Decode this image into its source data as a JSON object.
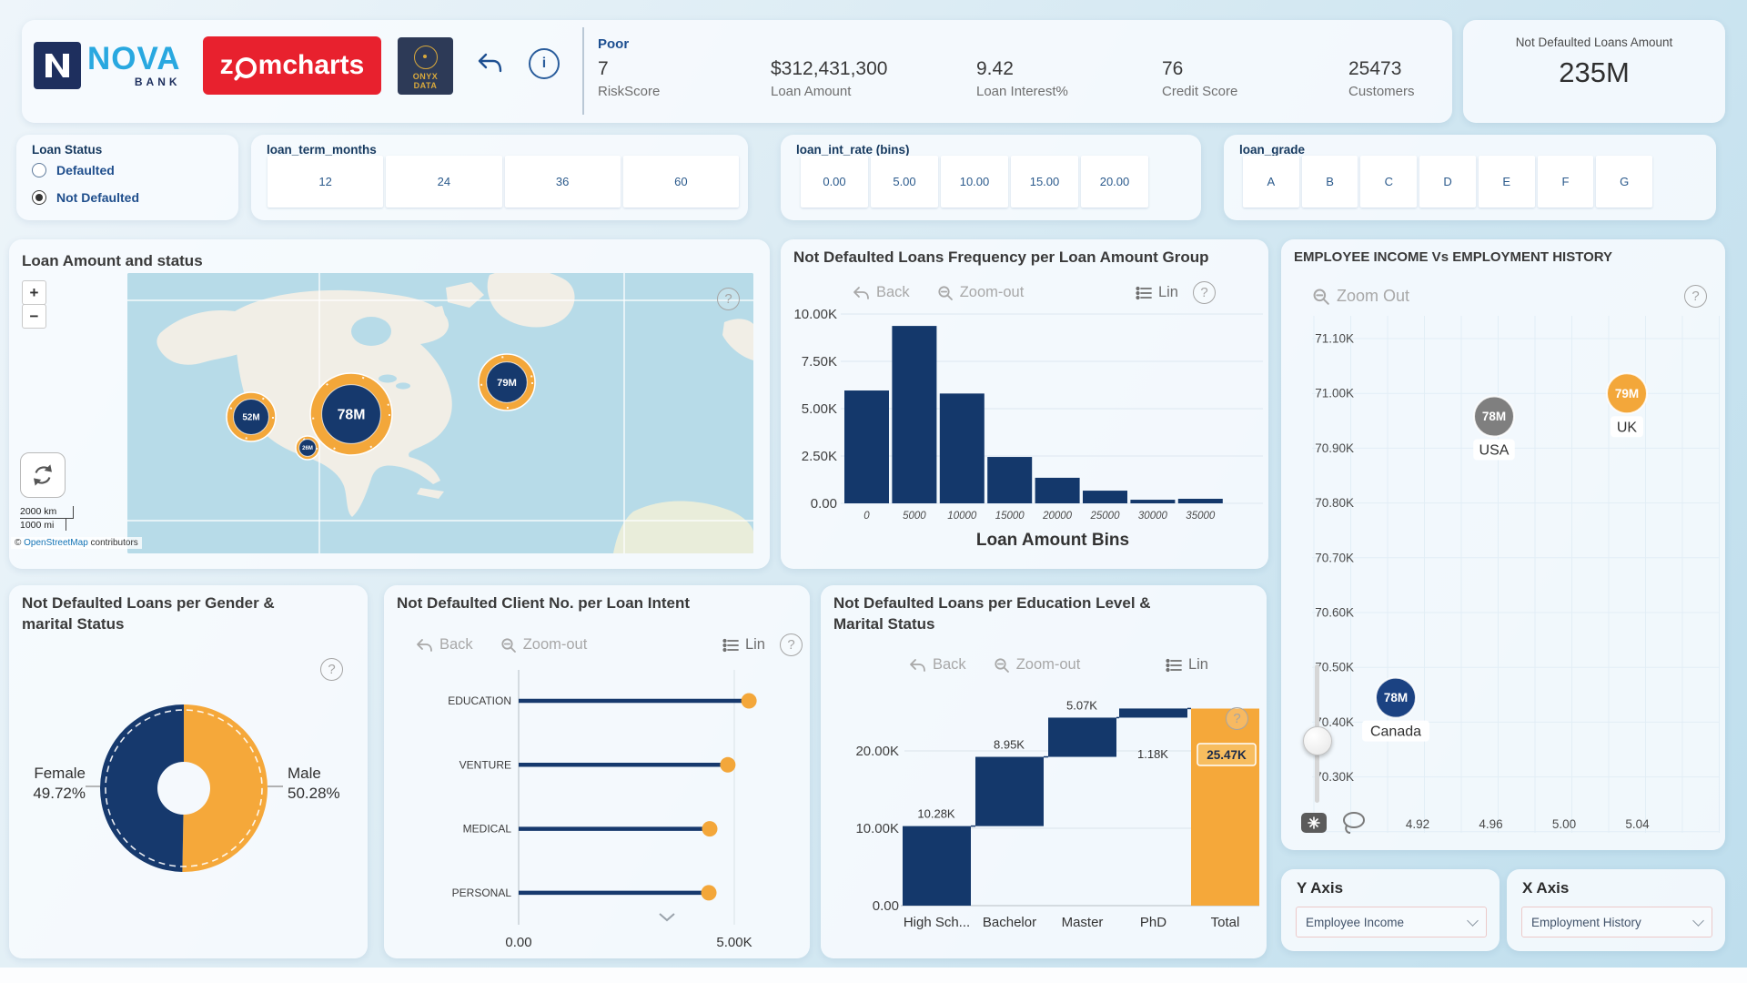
{
  "ui": {
    "back": "Back",
    "zoom_out": "Zoom-out",
    "zoom_out_scatter": "Zoom Out",
    "lin": "Lin",
    "help": "?"
  },
  "header": {
    "logos": {
      "nova_name": "NOVA",
      "nova_sub": "BANK",
      "zc_z": "z",
      "zc_rest": "mcharts",
      "onyx_1": "ONYX",
      "onyx_2": "DATA"
    },
    "kpis": [
      {
        "prefix": "Poor",
        "value": "7",
        "label": "RiskScore"
      },
      {
        "prefix": "",
        "value": "$312,431,300",
        "label": "Loan Amount"
      },
      {
        "prefix": "",
        "value": "9.42",
        "label": "Loan Interest%"
      },
      {
        "prefix": "",
        "value": "76",
        "label": "Credit Score"
      },
      {
        "prefix": "",
        "value": "25473",
        "label": "Customers"
      }
    ],
    "total_card": {
      "label": "Not Defaulted Loans Amount",
      "value": "235M"
    }
  },
  "filters": {
    "loan_status": {
      "title": "Loan Status",
      "options": [
        {
          "label": "Defaulted",
          "selected": false
        },
        {
          "label": "Not Defaulted",
          "selected": true
        }
      ]
    },
    "loan_term": {
      "title": "loan_term_months",
      "options": [
        "12",
        "24",
        "36",
        "60"
      ]
    },
    "loan_int_rate": {
      "title": "loan_int_rate (bins)",
      "options": [
        "0.00",
        "5.00",
        "10.00",
        "15.00",
        "20.00"
      ]
    },
    "loan_grade": {
      "title": "loan_grade",
      "options": [
        "A",
        "B",
        "C",
        "D",
        "E",
        "F",
        "G"
      ]
    }
  },
  "map": {
    "title": "Loan Amount and status",
    "zoom_in": "+",
    "zoom_out": "−",
    "scale_km": "2000 km",
    "scale_mi": "1000 mi",
    "attr_copy": "© ",
    "attr_link": "OpenStreetMap",
    "attr_rest": " contributors",
    "bubbles": [
      {
        "label": "52M",
        "x": 136,
        "y": 158,
        "r": 27
      },
      {
        "label": "78M",
        "x": 246,
        "y": 155,
        "r": 45
      },
      {
        "label": "26M",
        "x": 198,
        "y": 192,
        "r": 13
      },
      {
        "label": "79M",
        "x": 417,
        "y": 120,
        "r": 31
      }
    ]
  },
  "axis_cards": {
    "y": {
      "title": "Y Axis",
      "value": "Employee Income"
    },
    "x": {
      "title": "X Axis",
      "value": "Employment History"
    }
  },
  "chart_data": [
    {
      "id": "loan_amount_frequency",
      "type": "bar",
      "title": "Not Defaulted Loans Frequency per Loan Amount Group",
      "xlabel": "Loan Amount Bins",
      "ylabel": "",
      "categories": [
        "0",
        "5000",
        "10000",
        "15000",
        "20000",
        "25000",
        "30000",
        "35000"
      ],
      "values": [
        5960,
        9370,
        5800,
        2450,
        1350,
        670,
        190,
        240
      ],
      "yticks": [
        "0.00",
        "2.50K",
        "5.00K",
        "7.50K",
        "10.00K"
      ],
      "ylim": [
        0,
        10000
      ],
      "bar_color": "#14386b",
      "toolbar": [
        "Back",
        "Zoom-out",
        "Lin"
      ]
    },
    {
      "id": "gender_marital_donut",
      "type": "pie",
      "title": "Not Defaulted Loans per Gender & marital Status",
      "title_line1": "Not Defaulted Loans per Gender &",
      "title_line2": "marital Status",
      "slices": [
        {
          "label": "Female",
          "pct": 49.72,
          "pct_text": "49.72%",
          "color": "#16396d"
        },
        {
          "label": "Male",
          "pct": 50.28,
          "pct_text": "50.28%",
          "color": "#f5a83a"
        }
      ]
    },
    {
      "id": "loan_intent_lollipop",
      "type": "bar",
      "orientation": "horizontal",
      "title": "Not Defaulted Client No. per Loan Intent",
      "categories": [
        "EDUCATION",
        "VENTURE",
        "MEDICAL",
        "PERSONAL"
      ],
      "values": [
        5340,
        4850,
        4430,
        4410
      ],
      "xticks": [
        "0.00",
        "5.00K"
      ],
      "xlim": [
        0,
        5000
      ],
      "stem_color": "#16396d",
      "dot_color": "#f3a73a",
      "toolbar": [
        "Back",
        "Zoom-out",
        "Lin"
      ]
    },
    {
      "id": "education_waterfall",
      "type": "bar",
      "subtype": "waterfall",
      "title": "Not Defaulted Loans per Education Level & Marital Status",
      "title_line1": "Not Defaulted Loans per Education Level &",
      "title_line2": "Marital Status",
      "categories": [
        "High Sch...",
        "Bachelor",
        "Master",
        "PhD",
        "Total"
      ],
      "values": [
        10280,
        8950,
        5070,
        1180,
        25470
      ],
      "labels": [
        "10.28K",
        "8.95K",
        "5.07K",
        "1.18K",
        "25.47K"
      ],
      "yticks": [
        "0.00",
        "10.00K",
        "20.00K"
      ],
      "total_index": 4,
      "bar_color": "#14386b",
      "total_color": "#f5a83a",
      "toolbar": [
        "Back",
        "Zoom-out",
        "Lin"
      ]
    },
    {
      "id": "income_vs_employment_scatter",
      "type": "scatter",
      "title": "EMPLOYEE INCOME Vs EMPLOYMENT HISTORY",
      "yticks": [
        "71.10K",
        "71.00K",
        "70.90K",
        "70.80K",
        "70.70K",
        "70.60K",
        "70.50K",
        "70.40K",
        "70.30K"
      ],
      "xticks": [
        "4.92",
        "4.96",
        "5.00",
        "5.04"
      ],
      "ylim": [
        70250,
        71150
      ],
      "xlim": [
        4.895,
        5.075
      ],
      "points": [
        {
          "label": "USA",
          "value": "78M",
          "x": 4.962,
          "y": 70958,
          "color": "#7f7f7f"
        },
        {
          "label": "UK",
          "value": "79M",
          "x": 5.035,
          "y": 71000,
          "color": "#f3a73a"
        },
        {
          "label": "Canada",
          "value": "78M",
          "x": 4.908,
          "y": 70445,
          "color": "#1b4282"
        }
      ]
    }
  ]
}
